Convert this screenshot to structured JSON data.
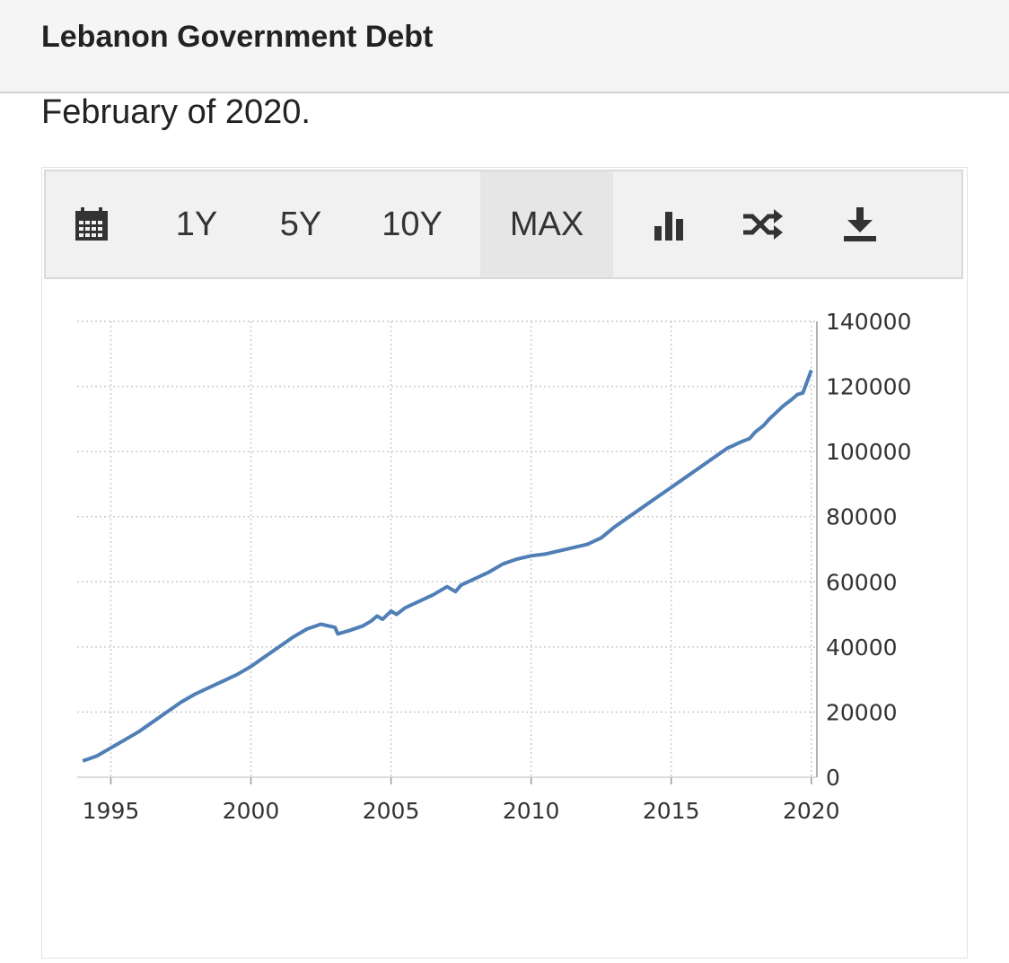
{
  "header": {
    "title": "Lebanon Government Debt"
  },
  "subtitle": "February of 2020.",
  "toolbar": {
    "calendar_icon": "calendar-icon",
    "range_buttons": [
      "1Y",
      "5Y",
      "10Y",
      "MAX"
    ],
    "active_range": "MAX",
    "bar_chart_icon": "bar-chart-icon",
    "compare_icon": "shuffle-icon",
    "download_icon": "download-icon"
  },
  "colors": {
    "line": "#4f7fb6",
    "grid": "#cccccc",
    "toolbar_bg": "#f1f1f1",
    "active_bg": "#e6e6e6"
  },
  "chart_data": {
    "type": "line",
    "title": "",
    "xlabel": "",
    "ylabel": "",
    "xlim": [
      1993.8,
      2020.2
    ],
    "ylim": [
      0,
      140000
    ],
    "x_ticks": [
      "1995",
      "2000",
      "2005",
      "2010",
      "2015",
      "2020"
    ],
    "y_ticks": [
      "0",
      "20000",
      "40000",
      "60000",
      "80000",
      "100000",
      "120000",
      "140000"
    ],
    "grid": true,
    "y_axis_side": "right",
    "series": [
      {
        "x": [
          1994.0,
          1994.5,
          1995.0,
          1995.5,
          1996.0,
          1996.5,
          1997.0,
          1997.5,
          1998.0,
          1998.5,
          1999.0,
          1999.5,
          2000.0,
          2000.5,
          2001.0,
          2001.5,
          2002.0,
          2002.5,
          2003.0,
          2003.1,
          2003.5,
          2004.0,
          2004.3,
          2004.5,
          2004.7,
          2005.0,
          2005.2,
          2005.5,
          2006.0,
          2006.5,
          2007.0,
          2007.3,
          2007.5,
          2008.0,
          2008.5,
          2009.0,
          2009.5,
          2010.0,
          2010.5,
          2011.0,
          2011.5,
          2012.0,
          2012.5,
          2013.0,
          2013.5,
          2014.0,
          2014.5,
          2015.0,
          2015.5,
          2016.0,
          2016.5,
          2017.0,
          2017.5,
          2017.8,
          2018.0,
          2018.3,
          2018.5,
          2019.0,
          2019.3,
          2019.5,
          2019.7,
          2020.0
        ],
        "values": [
          5000,
          6500,
          9000,
          11500,
          14000,
          17000,
          20000,
          23000,
          25500,
          27500,
          29500,
          31500,
          34000,
          37000,
          40000,
          43000,
          45500,
          47000,
          46000,
          44000,
          45000,
          46500,
          48000,
          49500,
          48500,
          51000,
          50000,
          52000,
          54000,
          56000,
          58500,
          57000,
          59000,
          61000,
          63000,
          65500,
          67000,
          68000,
          68500,
          69500,
          70500,
          71500,
          73500,
          77000,
          80000,
          83000,
          86000,
          89000,
          92000,
          95000,
          98000,
          101000,
          103000,
          104000,
          106000,
          108000,
          110000,
          114000,
          116000,
          117500,
          118000,
          125000
        ]
      }
    ]
  }
}
